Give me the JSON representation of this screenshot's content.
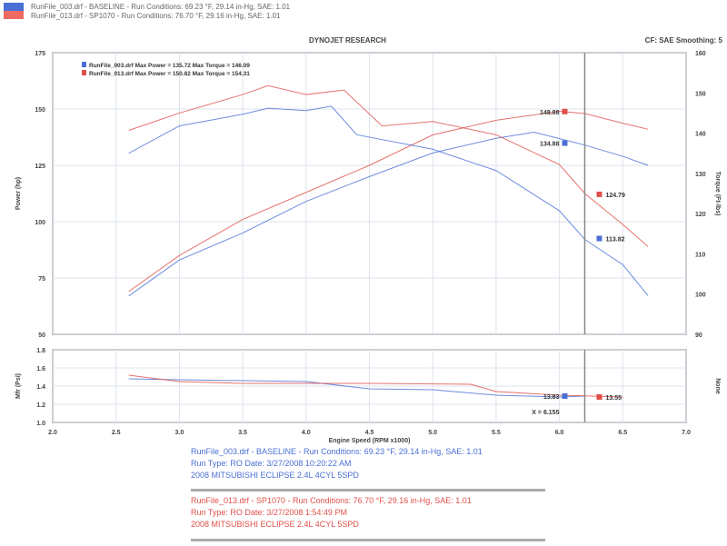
{
  "header": {
    "run1": "RunFile_003.drf - BASELINE  -  Run Conditions: 69.23 °F, 29.14 in-Hg, SAE: 1.01",
    "run2": "RunFile_013.drf - SP1070  -  Run Conditions: 76.70 °F, 29.16 in-Hg, SAE: 1.01",
    "title": "DYNOJET RESEARCH",
    "settings": "CF: SAE   Smoothing: 5"
  },
  "colors": {
    "baseline": "#4a6fd6",
    "mod": "#e0504a",
    "grid": "#dde3ee",
    "cursor": "#888888"
  },
  "chart_data": [
    {
      "type": "line",
      "xlabel": "Engine Speed (RPM x1000)",
      "ylabel": "Power (hp)",
      "y2label": "Torque (Ft-lbs)",
      "xlim": [
        2.0,
        7.0
      ],
      "ylim": [
        50,
        175
      ],
      "y2lim": [
        90,
        160
      ],
      "xticks": [
        "2.0",
        "2.5",
        "3.0",
        "3.5",
        "4.0",
        "4.5",
        "5.0",
        "5.5",
        "6.0",
        "6.5",
        "7.0"
      ],
      "yticks": [
        "50",
        "75",
        "100",
        "125",
        "150",
        "175"
      ],
      "y2ticks": [
        "90",
        "100",
        "110",
        "120",
        "130",
        "140",
        "150",
        "160"
      ],
      "grid": true,
      "cursor_x": 6.2,
      "legend": [
        {
          "text": "RunFile_003.drf Max Power = 135.72     Max Torque = 146.09",
          "color": "#4a6fd6"
        },
        {
          "text": "RunFile_013.drf Max Power = 150.82     Max Torque = 154.31",
          "color": "#e0504a"
        }
      ],
      "series": [
        {
          "axis": "left",
          "color": "#4a6fd6",
          "x": [
            2.6,
            3.0,
            3.5,
            4.0,
            4.5,
            5.0,
            5.5,
            5.8,
            6.2,
            6.5,
            6.7
          ],
          "y": [
            67,
            83,
            95,
            109,
            120,
            130.5,
            137,
            139.7,
            134,
            129,
            125
          ]
        },
        {
          "axis": "left",
          "color": "#e0504a",
          "x": [
            2.6,
            3.0,
            3.5,
            4.0,
            4.5,
            5.0,
            5.5,
            6.0,
            6.2,
            6.5,
            6.7
          ],
          "y": [
            69,
            85,
            101,
            113,
            125,
            138.5,
            145,
            149,
            148,
            143.7,
            141
          ]
        },
        {
          "axis": "right",
          "color": "#4a6fd6",
          "x": [
            2.6,
            3.0,
            3.5,
            3.7,
            4.0,
            4.2,
            4.4,
            5.0,
            5.5,
            6.0,
            6.2,
            6.5,
            6.7
          ],
          "y": [
            135,
            141.8,
            144.7,
            146.2,
            145.6,
            146.7,
            139.6,
            136,
            130.7,
            120.7,
            113.6,
            107.3,
            99.6
          ]
        },
        {
          "axis": "right",
          "color": "#e0504a",
          "x": [
            2.6,
            3.0,
            3.5,
            3.7,
            4.0,
            4.3,
            4.6,
            5.0,
            5.5,
            6.0,
            6.2,
            6.5,
            6.7
          ],
          "y": [
            140.7,
            145,
            149.6,
            151.8,
            149.6,
            150.7,
            141.8,
            142.9,
            139.6,
            132.2,
            125,
            117.3,
            111.8
          ]
        }
      ],
      "annotations": [
        {
          "text": "148.88",
          "axis": "left",
          "x": 6.2,
          "y": 148.88,
          "color": "#e0504a",
          "side": "left"
        },
        {
          "text": "134.88",
          "axis": "left",
          "x": 6.2,
          "y": 134.88,
          "color": "#4a6fd6",
          "side": "left"
        },
        {
          "text": "124.79",
          "axis": "right",
          "x": 6.2,
          "y": 124.79,
          "color": "#e0504a",
          "side": "right"
        },
        {
          "text": "113.82",
          "axis": "right",
          "x": 6.2,
          "y": 113.82,
          "color": "#4a6fd6",
          "side": "right"
        }
      ]
    },
    {
      "type": "line",
      "ylabel": "Mfr (Psi)",
      "y2label": "None",
      "xlim": [
        2.0,
        7.0
      ],
      "ylim": [
        1.0,
        1.8
      ],
      "yticks": [
        "1.0",
        "1.2",
        "1.4",
        "1.6",
        "1.8"
      ],
      "grid": true,
      "cursor_x": 6.2,
      "series": [
        {
          "color": "#4a6fd6",
          "x": [
            2.6,
            3.0,
            4.0,
            4.5,
            5.0,
            5.5,
            6.0,
            6.2
          ],
          "y": [
            1.48,
            1.47,
            1.45,
            1.37,
            1.36,
            1.3,
            1.28,
            1.29
          ]
        },
        {
          "color": "#e0504a",
          "x": [
            2.6,
            3.0,
            3.5,
            4.5,
            5.3,
            5.5,
            6.0,
            6.5
          ],
          "y": [
            1.52,
            1.45,
            1.43,
            1.43,
            1.42,
            1.34,
            1.3,
            1.28
          ]
        }
      ],
      "annotations": [
        {
          "text": "13.83",
          "x": 6.2,
          "y": 1.29,
          "color": "#4a6fd6",
          "side": "left"
        },
        {
          "text": "13.55",
          "x": 6.2,
          "y": 1.28,
          "color": "#e0504a",
          "side": "right"
        },
        {
          "text": "X = 6.155",
          "x": 6.2,
          "y": 1.12,
          "color": "#333333",
          "side": "left"
        }
      ]
    }
  ],
  "footer": {
    "blue": [
      "RunFile_003.drf - BASELINE  -  Run Conditions: 69.23 °F, 29.14 in-Hg, SAE: 1.01",
      "Run Type: RO  Date: 3/27/2008 10:20:22 AM",
      "2008 MITSUBISHI ECLIPSE 2.4L 4CYL 5SPD"
    ],
    "red": [
      "RunFile_013.drf - SP1070  -  Run Conditions: 76.70 °F, 29.16 in-Hg, SAE: 1.01",
      "Run Type: RO  Date: 3/27/2008 1:54:49 PM",
      "2008 MITSUBISHI ECLIPSE 2.4L 4CYL 5SPD"
    ]
  }
}
